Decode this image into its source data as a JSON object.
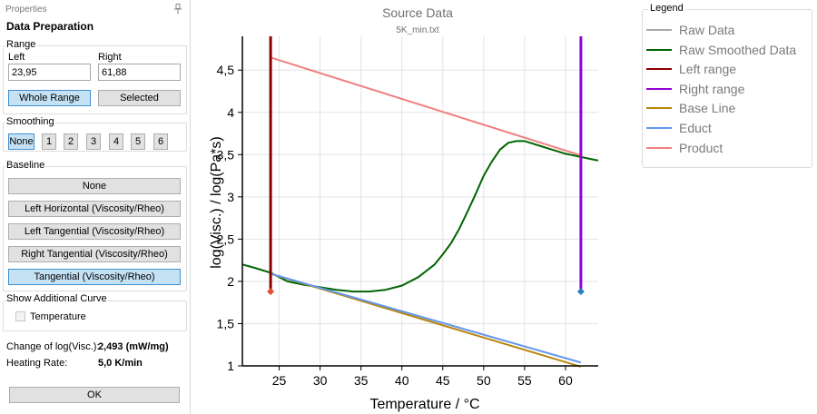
{
  "panel": {
    "header": "Properties",
    "title": "Data Preparation",
    "range": {
      "title": "Range",
      "left_label": "Left",
      "left_value": "23,95",
      "right_label": "Right",
      "right_value": "61,88",
      "whole_range_label": "Whole Range",
      "selected_label": "Selected"
    },
    "smoothing": {
      "title": "Smoothing",
      "options": [
        "None",
        "1",
        "2",
        "3",
        "4",
        "5",
        "6"
      ],
      "selected": "None"
    },
    "baseline": {
      "title": "Baseline",
      "options": [
        "None",
        "Left Horizontal (Viscosity/Rheo)",
        "Left Tangential (Viscosity/Rheo)",
        "Right Tangential (Viscosity/Rheo)",
        "Tangential (Viscosity/Rheo)"
      ],
      "selected": "Tangential (Viscosity/Rheo)"
    },
    "additional": {
      "title": "Show Additional Curve",
      "temperature_label": "Temperature",
      "temperature_checked": false
    },
    "info": {
      "change_label": "Change of log(Visc.):",
      "change_value": "2,493 (mW/mg)",
      "rate_label": "Heating Rate:",
      "rate_value": "5,0 K/min"
    },
    "ok_label": "OK"
  },
  "legend": {
    "title": "Legend",
    "items": [
      {
        "label": "Raw Data",
        "color": "#a9a9a9"
      },
      {
        "label": "Raw Smoothed Data",
        "color": "#006400"
      },
      {
        "label": "Left range",
        "color": "#8b0000"
      },
      {
        "label": "Right range",
        "color": "#9400d3"
      },
      {
        "label": "Base Line",
        "color": "#b8860b"
      },
      {
        "label": "Educt",
        "color": "#6495ed"
      },
      {
        "label": "Product",
        "color": "#f08080"
      }
    ]
  },
  "chart_data": {
    "type": "line",
    "title": "Source Data",
    "subtitle": "5K_min.txt",
    "xlabel": "Temperature / °C",
    "ylabel": "log(Visc.) / log(Pa*s)",
    "xlim": [
      20.5,
      64
    ],
    "ylim": [
      1,
      4.9
    ],
    "xticks": [
      25,
      30,
      35,
      40,
      45,
      50,
      55,
      60
    ],
    "yticks": [
      1,
      1.5,
      2,
      2.5,
      3,
      3.5,
      4,
      4.5
    ],
    "xtick_labels": [
      "25",
      "30",
      "35",
      "40",
      "45",
      "50",
      "55",
      "60"
    ],
    "ytick_labels": [
      "1",
      "1,5",
      "2",
      "2,5",
      "3",
      "3,5",
      "4",
      "4,5"
    ],
    "grid": true,
    "series": [
      {
        "name": "Raw Smoothed Data",
        "color": "#006400",
        "x": [
          20.5,
          22,
          24,
          26,
          28,
          30,
          32,
          34,
          36,
          38,
          40,
          42,
          44,
          45,
          46,
          47,
          48,
          49,
          50,
          51,
          52,
          53,
          54,
          55,
          56,
          57,
          58,
          59,
          60,
          61,
          62,
          63,
          64
        ],
        "y": [
          2.2,
          2.16,
          2.1,
          2.0,
          1.96,
          1.93,
          1.9,
          1.88,
          1.88,
          1.9,
          1.95,
          2.05,
          2.2,
          2.32,
          2.45,
          2.62,
          2.82,
          3.03,
          3.25,
          3.42,
          3.56,
          3.64,
          3.66,
          3.66,
          3.63,
          3.6,
          3.57,
          3.54,
          3.51,
          3.49,
          3.47,
          3.45,
          3.43
        ]
      },
      {
        "name": "Educt",
        "color": "#6495ed",
        "x": [
          23.95,
          61.88
        ],
        "y": [
          2.09,
          1.04
        ]
      },
      {
        "name": "Base Line",
        "color": "#b8860b",
        "x": [
          23.95,
          61.88
        ],
        "y": [
          2.09,
          0.99
        ]
      },
      {
        "name": "Product",
        "color": "#f08080",
        "x": [
          23.95,
          61.88
        ],
        "y": [
          4.65,
          3.49
        ]
      },
      {
        "name": "Left range",
        "color": "#8b0000",
        "x": [
          23.95,
          23.95
        ],
        "y": [
          4.9,
          1.88
        ]
      },
      {
        "name": "Right range",
        "color": "#9400d3",
        "x": [
          61.88,
          61.88
        ],
        "y": [
          4.9,
          1.88
        ]
      }
    ],
    "markers": [
      {
        "x": 23.95,
        "y": 1.88,
        "color": "#e05030"
      },
      {
        "x": 61.88,
        "y": 1.88,
        "color": "#2f7fbf"
      }
    ]
  }
}
